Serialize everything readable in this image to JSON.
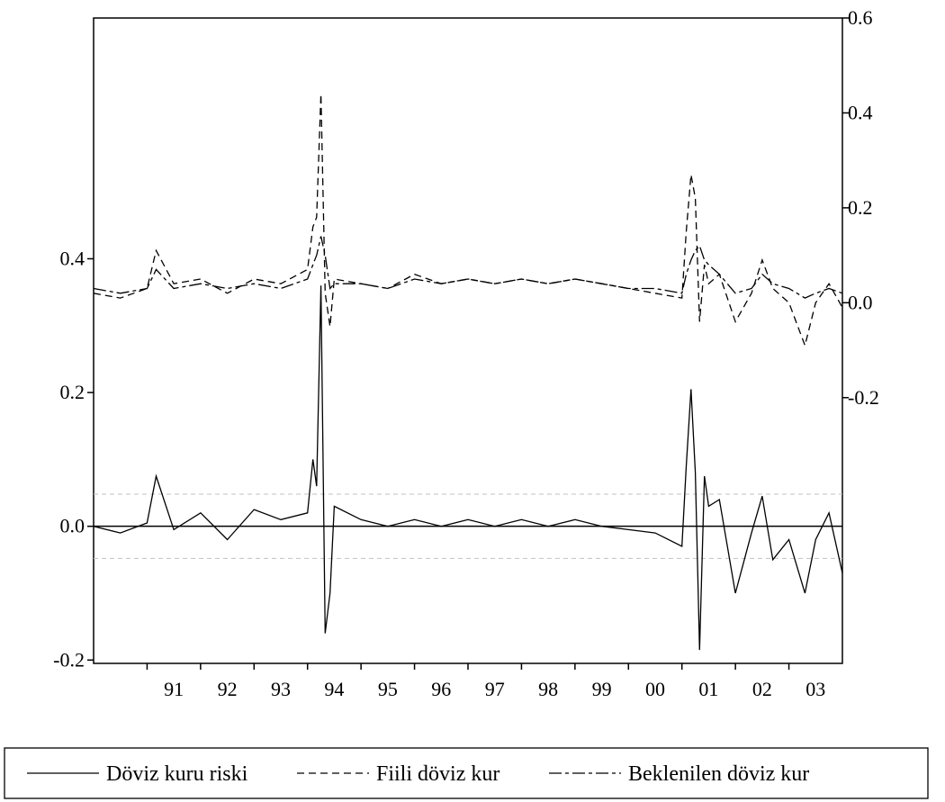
{
  "chart_data": {
    "type": "line",
    "title": "",
    "x_tick_labels": [
      "91",
      "92",
      "93",
      "94",
      "95",
      "96",
      "97",
      "98",
      "99",
      "00",
      "01",
      "02",
      "03"
    ],
    "x_range": [
      1990.0,
      2004.0
    ],
    "left_axis": {
      "ticks": [
        "0.4",
        "0.2",
        "0.0",
        "-0.2"
      ],
      "tick_values": [
        0.4,
        0.2,
        0.0,
        -0.2
      ],
      "range": [
        -0.205,
        0.76
      ]
    },
    "right_axis": {
      "ticks": [
        "0.6",
        "0.4",
        "0.2",
        "0.0",
        "-0.2"
      ],
      "tick_values": [
        0.6,
        0.4,
        0.2,
        0.0,
        -0.2
      ],
      "range": [
        -0.76,
        0.6
      ]
    },
    "bands": {
      "upper": 0.048,
      "lower": -0.048
    },
    "legend": {
      "position": "bottom",
      "entries": [
        "Döviz kuru riski",
        "Fiili döviz kur",
        "Beklenilen döviz kur"
      ]
    },
    "x": [
      1990.0,
      1990.5,
      1991.0,
      1991.17,
      1991.5,
      1992.0,
      1992.5,
      1993.0,
      1993.5,
      1994.0,
      1994.1,
      1994.17,
      1994.25,
      1994.33,
      1994.42,
      1994.5,
      1995.0,
      1995.5,
      1996.0,
      1996.5,
      1997.0,
      1997.5,
      1998.0,
      1998.5,
      1999.0,
      1999.5,
      2000.0,
      2000.5,
      2001.0,
      2001.08,
      2001.17,
      2001.25,
      2001.33,
      2001.42,
      2001.5,
      2001.7,
      2002.0,
      2002.3,
      2002.5,
      2002.7,
      2003.0,
      2003.3,
      2003.5,
      2003.75,
      2004.0
    ],
    "series": [
      {
        "name": "Döviz kuru riski",
        "axis": "left",
        "style": "solid",
        "values": [
          0.0,
          -0.01,
          0.005,
          0.075,
          -0.005,
          0.02,
          -0.02,
          0.025,
          0.01,
          0.02,
          0.1,
          0.06,
          0.36,
          -0.16,
          -0.1,
          0.03,
          0.01,
          0.0,
          0.01,
          0.0,
          0.01,
          0.0,
          0.01,
          0.0,
          0.01,
          0.0,
          -0.005,
          -0.01,
          -0.03,
          0.09,
          0.205,
          0.08,
          -0.185,
          0.075,
          0.03,
          0.04,
          -0.1,
          -0.01,
          0.045,
          -0.05,
          -0.02,
          -0.1,
          -0.02,
          0.02,
          -0.07
        ]
      },
      {
        "name": "Fiili döviz kur",
        "axis": "right",
        "style": "dashed",
        "values": [
          0.02,
          0.01,
          0.03,
          0.11,
          0.04,
          0.05,
          0.02,
          0.05,
          0.04,
          0.07,
          0.16,
          0.18,
          0.44,
          0.02,
          -0.05,
          0.05,
          0.04,
          0.03,
          0.06,
          0.04,
          0.05,
          0.04,
          0.05,
          0.04,
          0.05,
          0.04,
          0.03,
          0.02,
          0.01,
          0.15,
          0.27,
          0.22,
          -0.04,
          0.08,
          0.04,
          0.06,
          -0.04,
          0.02,
          0.09,
          0.03,
          0.0,
          -0.09,
          0.0,
          0.04,
          -0.01
        ]
      },
      {
        "name": "Beklenilen döviz kur",
        "axis": "right",
        "style": "dash-dot",
        "values": [
          0.03,
          0.02,
          0.03,
          0.07,
          0.03,
          0.04,
          0.03,
          0.04,
          0.03,
          0.05,
          0.08,
          0.1,
          0.14,
          0.1,
          0.03,
          0.04,
          0.04,
          0.03,
          0.05,
          0.04,
          0.05,
          0.04,
          0.05,
          0.04,
          0.05,
          0.04,
          0.03,
          0.03,
          0.02,
          0.06,
          0.09,
          0.11,
          0.12,
          0.09,
          0.08,
          0.06,
          0.02,
          0.03,
          0.06,
          0.04,
          0.03,
          0.01,
          0.02,
          0.03,
          0.02
        ]
      }
    ]
  }
}
